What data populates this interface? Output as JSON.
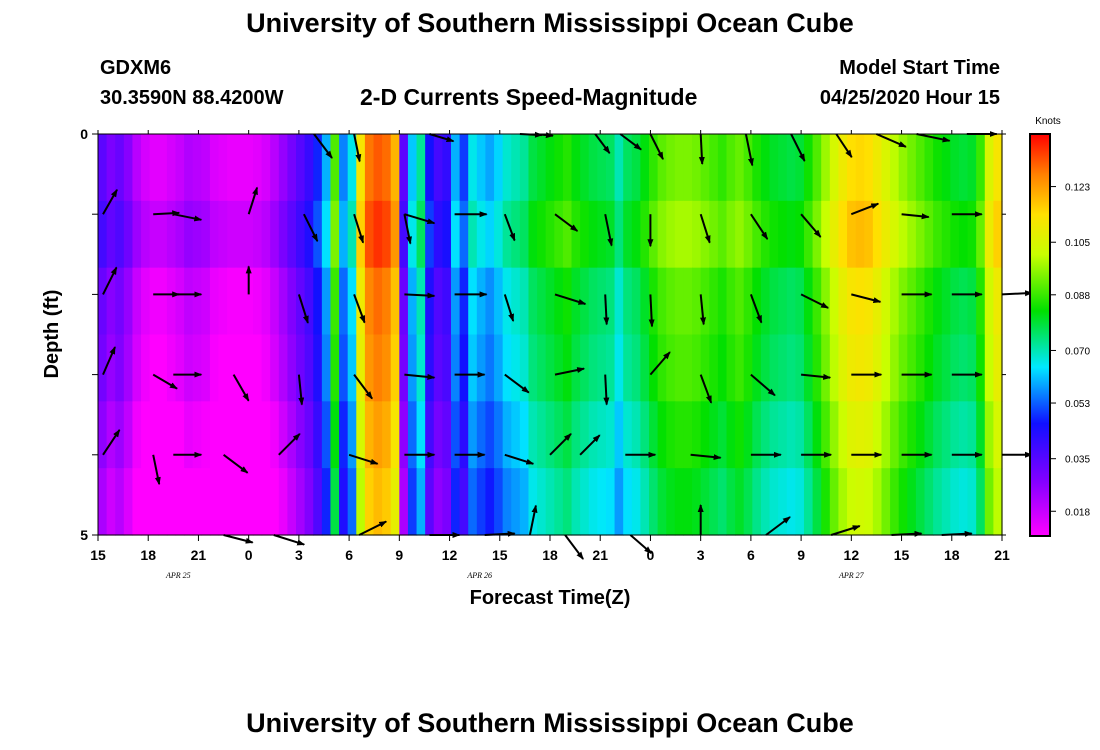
{
  "page": {
    "title_top": "University of Southern Mississippi Ocean Cube",
    "title_bottom": "University of Southern Mississippi Ocean Cube",
    "station": "GDXM6",
    "coords": "30.3590N 88.4200W",
    "subtitle": "2-D Currents Speed-Magnitude",
    "start_label": "Model Start Time",
    "start_value": "04/25/2020 Hour 15"
  },
  "chart_data": {
    "type": "heatmap",
    "title": "2-D Currents Speed-Magnitude",
    "xlabel": "Forecast Time(Z)",
    "ylabel": "Depth (ft)",
    "x_tick_labels": [
      "15",
      "18",
      "21",
      "0",
      "3",
      "6",
      "9",
      "12",
      "15",
      "18",
      "21",
      "0",
      "3",
      "6",
      "9",
      "12",
      "15",
      "18",
      "21"
    ],
    "date_labels": [
      {
        "text": "APR  25",
        "tick": 1.6
      },
      {
        "text": "APR  26",
        "tick": 7.6
      },
      {
        "text": "APR  27",
        "tick": 15.0
      }
    ],
    "y_tick_labels": [
      "0",
      "5"
    ],
    "xlim": [
      0,
      54
    ],
    "ylim": [
      0,
      5
    ],
    "colorbar": {
      "unit": "Knots",
      "min": 0.01,
      "max": 0.14,
      "ticks": [
        0.018,
        0.035,
        0.053,
        0.07,
        0.088,
        0.105,
        0.123
      ],
      "tick_labels": [
        "0.018",
        "0.035",
        "0.053",
        "0.070",
        "0.088",
        "0.105",
        "0.123"
      ]
    },
    "speed_columns": [
      0.034,
      0.029,
      0.032,
      0.027,
      0.02,
      0.016,
      0.014,
      0.014,
      0.016,
      0.018,
      0.021,
      0.02,
      0.019,
      0.015,
      0.014,
      0.013,
      0.013,
      0.013,
      0.014,
      0.016,
      0.02,
      0.025,
      0.03,
      0.035,
      0.04,
      0.048,
      0.06,
      0.09,
      0.056,
      0.066,
      0.112,
      0.128,
      0.131,
      0.129,
      0.12,
      0.034,
      0.062,
      0.072,
      0.046,
      0.038,
      0.041,
      0.06,
      0.05,
      0.066,
      0.062,
      0.059,
      0.063,
      0.068,
      0.07,
      0.072,
      0.078,
      0.08,
      0.082,
      0.084,
      0.086,
      0.082,
      0.08,
      0.078,
      0.077,
      0.076,
      0.07,
      0.076,
      0.078,
      0.082,
      0.087,
      0.091,
      0.093,
      0.094,
      0.094,
      0.093,
      0.091,
      0.089,
      0.087,
      0.09,
      0.092,
      0.089,
      0.085,
      0.082,
      0.08,
      0.079,
      0.078,
      0.079,
      0.084,
      0.09,
      0.097,
      0.104,
      0.11,
      0.114,
      0.115,
      0.114,
      0.11,
      0.105,
      0.1,
      0.096,
      0.093,
      0.09,
      0.087,
      0.084,
      0.082,
      0.08,
      0.079,
      0.08,
      0.088,
      0.105,
      0.112
    ],
    "depth_layer_offsets": [
      0.0,
      0.004,
      -0.002,
      -0.004,
      -0.008,
      -0.012
    ],
    "vectors": [
      {
        "tick": 0.3,
        "depth": 0,
        "dx": 0,
        "dy": 0,
        "len": 0
      },
      {
        "tick": 4.3,
        "depth": 0,
        "dx": 0.6,
        "dy": 0.8,
        "len": 30
      },
      {
        "tick": 5.1,
        "depth": 0,
        "dx": 0.2,
        "dy": 0.98,
        "len": 28
      },
      {
        "tick": 6.6,
        "depth": 0,
        "dx": 1,
        "dy": 0.3,
        "len": 24
      },
      {
        "tick": 8.4,
        "depth": 0,
        "dx": 1,
        "dy": 0.05,
        "len": 22
      },
      {
        "tick": 8.7,
        "depth": 0,
        "dx": 1,
        "dy": 0.1,
        "len": 18
      },
      {
        "tick": 9.9,
        "depth": 0,
        "dx": 0.6,
        "dy": 0.8,
        "len": 24
      },
      {
        "tick": 10.4,
        "depth": 0,
        "dx": 0.8,
        "dy": 0.6,
        "len": 26
      },
      {
        "tick": 11.0,
        "depth": 0,
        "dx": 0.45,
        "dy": 0.9,
        "len": 28
      },
      {
        "tick": 12.0,
        "depth": 0,
        "dx": 0.05,
        "dy": 1,
        "len": 30
      },
      {
        "tick": 12.9,
        "depth": 0,
        "dx": 0.2,
        "dy": 0.98,
        "len": 32
      },
      {
        "tick": 13.8,
        "depth": 0,
        "dx": 0.45,
        "dy": 0.9,
        "len": 30
      },
      {
        "tick": 14.7,
        "depth": 0,
        "dx": 0.55,
        "dy": 0.83,
        "len": 28
      },
      {
        "tick": 15.5,
        "depth": 0,
        "dx": 0.92,
        "dy": 0.4,
        "len": 32
      },
      {
        "tick": 16.3,
        "depth": 0,
        "dx": 0.97,
        "dy": 0.2,
        "len": 34
      },
      {
        "tick": 17.3,
        "depth": 0,
        "dx": 1,
        "dy": 0,
        "len": 30
      },
      {
        "tick": 0.1,
        "depth": 1,
        "dx": 0.5,
        "dy": -0.87,
        "len": 28
      },
      {
        "tick": 1.1,
        "depth": 1,
        "dx": 1,
        "dy": -0.05,
        "len": 26
      },
      {
        "tick": 1.5,
        "depth": 1,
        "dx": 1,
        "dy": 0.2,
        "len": 28
      },
      {
        "tick": 3.0,
        "depth": 1,
        "dx": 0.3,
        "dy": -0.95,
        "len": 28
      },
      {
        "tick": 4.1,
        "depth": 1,
        "dx": 0.45,
        "dy": 0.9,
        "len": 30
      },
      {
        "tick": 5.1,
        "depth": 1,
        "dx": 0.3,
        "dy": 0.95,
        "len": 30
      },
      {
        "tick": 6.1,
        "depth": 1,
        "dx": 0.2,
        "dy": 0.98,
        "len": 30
      },
      {
        "tick": 6.1,
        "depth": 1,
        "dx": 1,
        "dy": 0.3,
        "len": 30
      },
      {
        "tick": 7.1,
        "depth": 1,
        "dx": 1,
        "dy": 0,
        "len": 32
      },
      {
        "tick": 8.1,
        "depth": 1,
        "dx": 0.35,
        "dy": 0.94,
        "len": 28
      },
      {
        "tick": 9.1,
        "depth": 1,
        "dx": 0.8,
        "dy": 0.6,
        "len": 28
      },
      {
        "tick": 10.1,
        "depth": 1,
        "dx": 0.2,
        "dy": 0.98,
        "len": 32
      },
      {
        "tick": 11.0,
        "depth": 1,
        "dx": 0,
        "dy": 1,
        "len": 32
      },
      {
        "tick": 12.0,
        "depth": 1,
        "dx": 0.3,
        "dy": 0.95,
        "len": 30
      },
      {
        "tick": 13.0,
        "depth": 1,
        "dx": 0.55,
        "dy": 0.83,
        "len": 30
      },
      {
        "tick": 14.0,
        "depth": 1,
        "dx": 0.65,
        "dy": 0.76,
        "len": 30
      },
      {
        "tick": 15.0,
        "depth": 1,
        "dx": 0.9,
        "dy": -0.35,
        "len": 30
      },
      {
        "tick": 16.0,
        "depth": 1,
        "dx": 0.97,
        "dy": 0.1,
        "len": 28
      },
      {
        "tick": 17.0,
        "depth": 1,
        "dx": 1,
        "dy": 0,
        "len": 30
      },
      {
        "tick": 0.1,
        "depth": 2,
        "dx": 0.45,
        "dy": -0.9,
        "len": 30
      },
      {
        "tick": 1.1,
        "depth": 2,
        "dx": 1,
        "dy": 0,
        "len": 26
      },
      {
        "tick": 1.5,
        "depth": 2,
        "dx": 1,
        "dy": 0,
        "len": 28
      },
      {
        "tick": 3.0,
        "depth": 2,
        "dx": 0,
        "dy": -1,
        "len": 28
      },
      {
        "tick": 4.0,
        "depth": 2,
        "dx": 0.3,
        "dy": 0.95,
        "len": 30
      },
      {
        "tick": 5.1,
        "depth": 2,
        "dx": 0.35,
        "dy": 0.94,
        "len": 30
      },
      {
        "tick": 6.1,
        "depth": 2,
        "dx": 1,
        "dy": 0.05,
        "len": 30
      },
      {
        "tick": 7.1,
        "depth": 2,
        "dx": 1,
        "dy": 0,
        "len": 32
      },
      {
        "tick": 8.1,
        "depth": 2,
        "dx": 0.3,
        "dy": 0.95,
        "len": 28
      },
      {
        "tick": 9.1,
        "depth": 2,
        "dx": 0.95,
        "dy": 0.3,
        "len": 32
      },
      {
        "tick": 10.1,
        "depth": 2,
        "dx": 0.05,
        "dy": 1,
        "len": 30
      },
      {
        "tick": 11.0,
        "depth": 2,
        "dx": 0.05,
        "dy": 1,
        "len": 32
      },
      {
        "tick": 12.0,
        "depth": 2,
        "dx": 0.1,
        "dy": 1,
        "len": 30
      },
      {
        "tick": 13.0,
        "depth": 2,
        "dx": 0.35,
        "dy": 0.94,
        "len": 30
      },
      {
        "tick": 14.0,
        "depth": 2,
        "dx": 0.9,
        "dy": 0.45,
        "len": 30
      },
      {
        "tick": 15.0,
        "depth": 2,
        "dx": 0.97,
        "dy": 0.25,
        "len": 30
      },
      {
        "tick": 16.0,
        "depth": 2,
        "dx": 1,
        "dy": 0,
        "len": 30
      },
      {
        "tick": 17.0,
        "depth": 2,
        "dx": 1,
        "dy": 0,
        "len": 30
      },
      {
        "tick": 18.0,
        "depth": 2,
        "dx": 1,
        "dy": -0.05,
        "len": 30
      },
      {
        "tick": 0.1,
        "depth": 3,
        "dx": 0.4,
        "dy": -0.92,
        "len": 30
      },
      {
        "tick": 1.1,
        "depth": 3,
        "dx": 0.85,
        "dy": 0.5,
        "len": 28
      },
      {
        "tick": 1.5,
        "depth": 3,
        "dx": 1,
        "dy": 0,
        "len": 28
      },
      {
        "tick": 2.7,
        "depth": 3,
        "dx": 0.5,
        "dy": 0.87,
        "len": 30
      },
      {
        "tick": 4.0,
        "depth": 3,
        "dx": 0.1,
        "dy": 1,
        "len": 30
      },
      {
        "tick": 5.1,
        "depth": 3,
        "dx": 0.6,
        "dy": 0.8,
        "len": 30
      },
      {
        "tick": 6.1,
        "depth": 3,
        "dx": 1,
        "dy": 0.1,
        "len": 30
      },
      {
        "tick": 7.1,
        "depth": 3,
        "dx": 1,
        "dy": 0,
        "len": 30
      },
      {
        "tick": 8.1,
        "depth": 3,
        "dx": 0.8,
        "dy": 0.6,
        "len": 30
      },
      {
        "tick": 9.1,
        "depth": 3,
        "dx": 0.97,
        "dy": -0.2,
        "len": 30
      },
      {
        "tick": 10.1,
        "depth": 3,
        "dx": 0.05,
        "dy": 1,
        "len": 30
      },
      {
        "tick": 11.0,
        "depth": 3,
        "dx": 0.65,
        "dy": -0.75,
        "len": 30
      },
      {
        "tick": 12.0,
        "depth": 3,
        "dx": 0.35,
        "dy": 0.94,
        "len": 30
      },
      {
        "tick": 13.0,
        "depth": 3,
        "dx": 0.75,
        "dy": 0.65,
        "len": 32
      },
      {
        "tick": 14.0,
        "depth": 3,
        "dx": 0.97,
        "dy": 0.1,
        "len": 30
      },
      {
        "tick": 15.0,
        "depth": 3,
        "dx": 1,
        "dy": 0,
        "len": 30
      },
      {
        "tick": 16.0,
        "depth": 3,
        "dx": 1,
        "dy": 0,
        "len": 30
      },
      {
        "tick": 17.0,
        "depth": 3,
        "dx": 1,
        "dy": 0,
        "len": 30
      },
      {
        "tick": 0.1,
        "depth": 4,
        "dx": 0.55,
        "dy": -0.83,
        "len": 30
      },
      {
        "tick": 1.1,
        "depth": 4,
        "dx": 0.2,
        "dy": 0.98,
        "len": 30
      },
      {
        "tick": 1.5,
        "depth": 4,
        "dx": 1,
        "dy": 0,
        "len": 28
      },
      {
        "tick": 2.5,
        "depth": 4,
        "dx": 0.8,
        "dy": 0.6,
        "len": 30
      },
      {
        "tick": 3.6,
        "depth": 4,
        "dx": 0.7,
        "dy": -0.7,
        "len": 30
      },
      {
        "tick": 5.0,
        "depth": 4,
        "dx": 0.95,
        "dy": 0.3,
        "len": 30
      },
      {
        "tick": 6.1,
        "depth": 4,
        "dx": 1,
        "dy": 0,
        "len": 30
      },
      {
        "tick": 7.1,
        "depth": 4,
        "dx": 1,
        "dy": 0,
        "len": 30
      },
      {
        "tick": 8.1,
        "depth": 4,
        "dx": 0.95,
        "dy": 0.3,
        "len": 30
      },
      {
        "tick": 9.0,
        "depth": 4,
        "dx": 0.7,
        "dy": -0.7,
        "len": 30
      },
      {
        "tick": 9.6,
        "depth": 4,
        "dx": 0.7,
        "dy": -0.7,
        "len": 28
      },
      {
        "tick": 10.5,
        "depth": 4,
        "dx": 1,
        "dy": 0,
        "len": 30
      },
      {
        "tick": 11.8,
        "depth": 4,
        "dx": 1,
        "dy": 0.1,
        "len": 30
      },
      {
        "tick": 13.0,
        "depth": 4,
        "dx": 1,
        "dy": 0,
        "len": 30
      },
      {
        "tick": 14.0,
        "depth": 4,
        "dx": 1,
        "dy": 0,
        "len": 30
      },
      {
        "tick": 15.0,
        "depth": 4,
        "dx": 1,
        "dy": 0,
        "len": 30
      },
      {
        "tick": 16.0,
        "depth": 4,
        "dx": 1,
        "dy": 0,
        "len": 30
      },
      {
        "tick": 17.0,
        "depth": 4,
        "dx": 1,
        "dy": 0,
        "len": 30
      },
      {
        "tick": 18.0,
        "depth": 4,
        "dx": 1,
        "dy": 0,
        "len": 30
      },
      {
        "tick": 2.5,
        "depth": 5,
        "dx": 0.97,
        "dy": 0.25,
        "len": 30
      },
      {
        "tick": 3.5,
        "depth": 5,
        "dx": 0.95,
        "dy": 0.3,
        "len": 32
      },
      {
        "tick": 5.2,
        "depth": 5,
        "dx": 0.9,
        "dy": -0.45,
        "len": 30
      },
      {
        "tick": 6.6,
        "depth": 5,
        "dx": 1,
        "dy": 0,
        "len": 30
      },
      {
        "tick": 7.7,
        "depth": 5,
        "dx": 1,
        "dy": -0.05,
        "len": 30
      },
      {
        "tick": 8.6,
        "depth": 5,
        "dx": 0.2,
        "dy": -0.98,
        "len": 30
      },
      {
        "tick": 9.3,
        "depth": 5,
        "dx": 0.6,
        "dy": 0.8,
        "len": 30
      },
      {
        "tick": 10.6,
        "depth": 5,
        "dx": 0.75,
        "dy": 0.65,
        "len": 28
      },
      {
        "tick": 12.0,
        "depth": 5,
        "dx": 0,
        "dy": -1,
        "len": 30
      },
      {
        "tick": 13.3,
        "depth": 5,
        "dx": 0.8,
        "dy": -0.6,
        "len": 30
      },
      {
        "tick": 14.6,
        "depth": 5,
        "dx": 0.95,
        "dy": -0.3,
        "len": 30
      },
      {
        "tick": 15.8,
        "depth": 5,
        "dx": 1,
        "dy": -0.05,
        "len": 30
      },
      {
        "tick": 16.8,
        "depth": 5,
        "dx": 1,
        "dy": -0.05,
        "len": 30
      }
    ]
  }
}
